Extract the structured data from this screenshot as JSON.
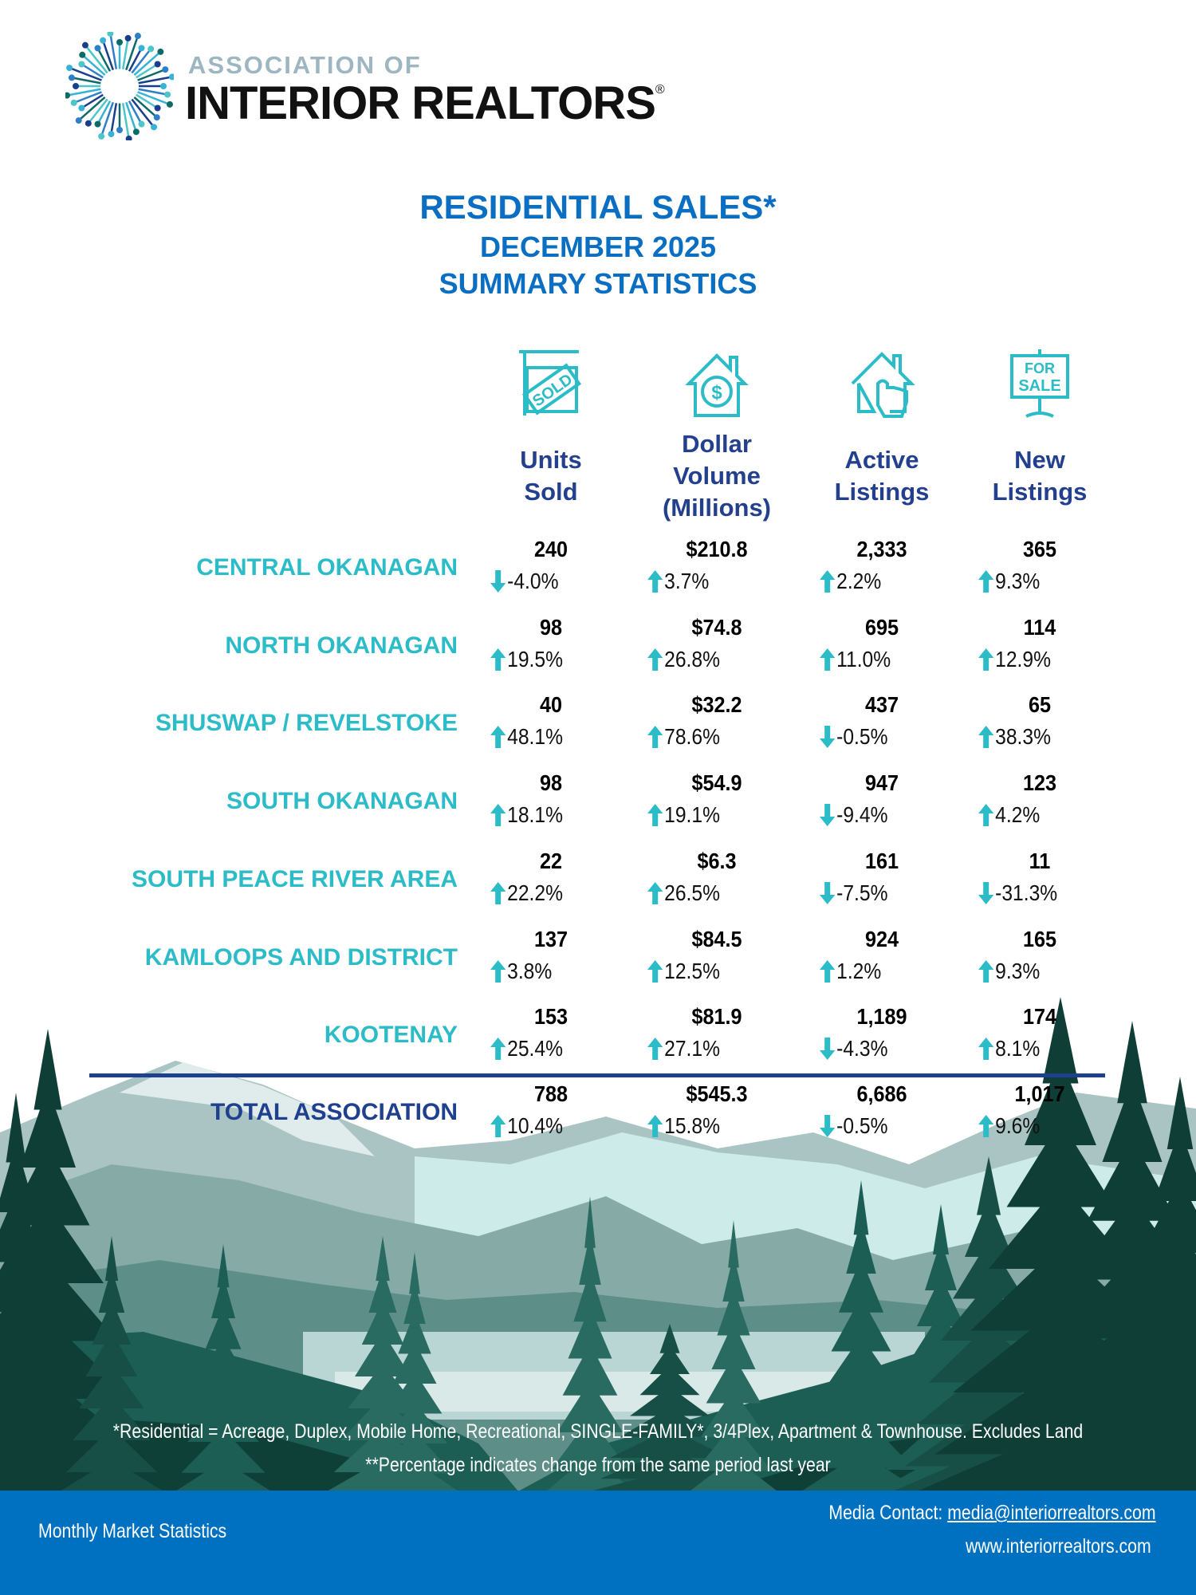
{
  "logo": {
    "line1": "ASSOCIATION OF",
    "line2": "INTERIOR REALTORS",
    "registered": "®"
  },
  "title": {
    "line1": "RESIDENTIAL SALES*",
    "line2": "DECEMBER 2025",
    "line3": "SUMMARY STATISTICS"
  },
  "columns": [
    {
      "icon": "sold-sign-icon",
      "label_lines": [
        "Units",
        "Sold"
      ]
    },
    {
      "icon": "house-dollar-icon",
      "label_lines": [
        "Dollar",
        "Volume",
        "(Millions)"
      ]
    },
    {
      "icon": "house-hand-pointer-icon",
      "label_lines": [
        "Active",
        "Listings"
      ]
    },
    {
      "icon": "for-sale-sign-icon",
      "label_lines": [
        "New",
        "Listings"
      ]
    }
  ],
  "icon_text": {
    "sold": "SOLD",
    "for": "FOR",
    "sale": "SALE",
    "dollar": "$"
  },
  "rows": [
    {
      "region": "CENTRAL OKANAGAN",
      "values": [
        "240",
        "$210.8",
        "2,333",
        "365"
      ],
      "changes": [
        "-4.0%",
        "3.7%",
        "2.2%",
        "9.3%"
      ],
      "dirs": [
        "down",
        "up",
        "up",
        "up"
      ]
    },
    {
      "region": "NORTH OKANAGAN",
      "values": [
        "98",
        "$74.8",
        "695",
        "114"
      ],
      "changes": [
        "19.5%",
        "26.8%",
        "11.0%",
        "12.9%"
      ],
      "dirs": [
        "up",
        "up",
        "up",
        "up"
      ]
    },
    {
      "region": "SHUSWAP / REVELSTOKE",
      "values": [
        "40",
        "$32.2",
        "437",
        "65"
      ],
      "changes": [
        "48.1%",
        "78.6%",
        "-0.5%",
        "38.3%"
      ],
      "dirs": [
        "up",
        "up",
        "down",
        "up"
      ]
    },
    {
      "region": "SOUTH OKANAGAN",
      "values": [
        "98",
        "$54.9",
        "947",
        "123"
      ],
      "changes": [
        "18.1%",
        "19.1%",
        "-9.4%",
        "4.2%"
      ],
      "dirs": [
        "up",
        "up",
        "down",
        "up"
      ]
    },
    {
      "region": "SOUTH PEACE RIVER AREA",
      "values": [
        "22",
        "$6.3",
        "161",
        "11"
      ],
      "changes": [
        "22.2%",
        "26.5%",
        "-7.5%",
        "-31.3%"
      ],
      "dirs": [
        "up",
        "up",
        "down",
        "down"
      ]
    },
    {
      "region": "KAMLOOPS AND DISTRICT",
      "values": [
        "137",
        "$84.5",
        "924",
        "165"
      ],
      "changes": [
        "3.8%",
        "12.5%",
        "1.2%",
        "9.3%"
      ],
      "dirs": [
        "up",
        "up",
        "up",
        "up"
      ]
    },
    {
      "region": "KOOTENAY",
      "values": [
        "153",
        "$81.9",
        "1,189",
        "174"
      ],
      "changes": [
        "25.4%",
        "27.1%",
        "-4.3%",
        "8.1%"
      ],
      "dirs": [
        "up",
        "up",
        "down",
        "up"
      ]
    }
  ],
  "total": {
    "region": "TOTAL ASSOCIATION",
    "values": [
      "788",
      "$545.3",
      "6,686",
      "1,017"
    ],
    "changes": [
      "10.4%",
      "15.8%",
      "-0.5%",
      "9.6%"
    ],
    "dirs": [
      "up",
      "up",
      "down",
      "up"
    ]
  },
  "footnotes": {
    "line1": "*Residential = Acreage, Duplex, Mobile Home, Recreational, SINGLE-FAMILY*, 3/4Plex, Apartment & Townhouse. Excludes Land",
    "line2": "**Percentage indicates change from the same period last year"
  },
  "footer": {
    "left": "Monthly Market Statistics",
    "media_label": "Media Contact: ",
    "media_email": "media@interiorrealtors.com",
    "website": "www.interiorrealtors.com"
  },
  "colors": {
    "brand_blue": "#0a6fc2",
    "header_navy": "#23408e",
    "region_teal": "#2bbcc8",
    "arrow_teal": "#2bbcc8",
    "footer_blue": "#0071c1",
    "forest": "#0f4a40"
  }
}
